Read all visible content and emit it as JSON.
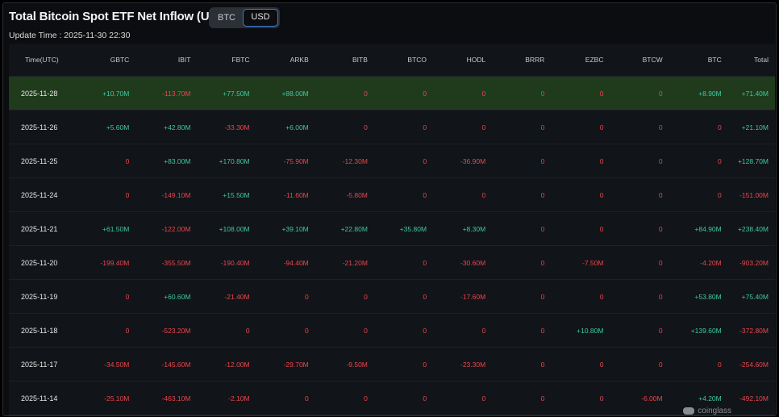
{
  "header": {
    "title": "Total Bitcoin Spot ETF Net Inflow (USD)",
    "toggle_btc": "BTC",
    "toggle_usd": "USD",
    "update_time": "Update Time : 2025-11-30 22:30"
  },
  "colors": {
    "positive": "#3fc9a1",
    "negative": "#e8474f",
    "highlight_row": "#203a1c",
    "active_border": "#3a7bd5"
  },
  "table": {
    "columns": [
      "Time(UTC)",
      "GBTC",
      "IBIT",
      "FBTC",
      "ARKB",
      "BITB",
      "BTCO",
      "HODL",
      "BRRR",
      "EZBC",
      "BTCW",
      "BTC",
      "Total"
    ],
    "rows": [
      [
        "2025-11-28",
        "+10.70M",
        "-113.70M",
        "+77.50M",
        "+88.00M",
        "0",
        "0",
        "0",
        "0",
        "0",
        "0",
        "+8.90M",
        "+71.40M"
      ],
      [
        "2025-11-26",
        "+5.60M",
        "+42.80M",
        "-33.30M",
        "+6.00M",
        "0",
        "0",
        "0",
        "0",
        "0",
        "0",
        "0",
        "+21.10M"
      ],
      [
        "2025-11-25",
        "0",
        "+83.00M",
        "+170.80M",
        "-75.90M",
        "-12.30M",
        "0",
        "-36.90M",
        "0",
        "0",
        "0",
        "0",
        "+128.70M"
      ],
      [
        "2025-11-24",
        "0",
        "-149.10M",
        "+15.50M",
        "-11.60M",
        "-5.80M",
        "0",
        "0",
        "0",
        "0",
        "0",
        "0",
        "-151.00M"
      ],
      [
        "2025-11-21",
        "+61.50M",
        "-122.00M",
        "+108.00M",
        "+39.10M",
        "+22.80M",
        "+35.80M",
        "+8.30M",
        "0",
        "0",
        "0",
        "+84.90M",
        "+238.40M"
      ],
      [
        "2025-11-20",
        "-199.40M",
        "-355.50M",
        "-190.40M",
        "-94.40M",
        "-21.20M",
        "0",
        "-30.60M",
        "0",
        "-7.50M",
        "0",
        "-4.20M",
        "-903.20M"
      ],
      [
        "2025-11-19",
        "0",
        "+60.60M",
        "-21.40M",
        "0",
        "0",
        "0",
        "-17.60M",
        "0",
        "0",
        "0",
        "+53.80M",
        "+75.40M"
      ],
      [
        "2025-11-18",
        "0",
        "-523.20M",
        "0",
        "0",
        "0",
        "0",
        "0",
        "0",
        "+10.80M",
        "0",
        "+139.60M",
        "-372.80M"
      ],
      [
        "2025-11-17",
        "-34.50M",
        "-145.60M",
        "-12.00M",
        "-29.70M",
        "-9.50M",
        "0",
        "-23.30M",
        "0",
        "0",
        "0",
        "0",
        "-254.60M"
      ],
      [
        "2025-11-14",
        "-25.10M",
        "-463.10M",
        "-2.10M",
        "0",
        "0",
        "0",
        "0",
        "0",
        "0",
        "-6.00M",
        "+4.20M",
        "-492.10M"
      ]
    ]
  },
  "watermark": {
    "text": "coinglass",
    "icon": "coinglass-logo-icon"
  }
}
